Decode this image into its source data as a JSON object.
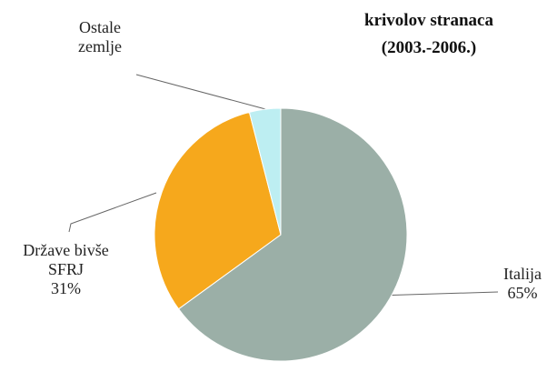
{
  "chart_data": {
    "type": "pie",
    "title": "krivolov stranaca (2003.-2006.)",
    "categories": [
      "Italija",
      "Države bivše SFRJ",
      "Ostale zemlje"
    ],
    "values": [
      65,
      31,
      4
    ],
    "value_labels": [
      "65%",
      "31%",
      null
    ],
    "colors": [
      "#9bafa7",
      "#f6a81c",
      "#bdeef2"
    ]
  }
}
